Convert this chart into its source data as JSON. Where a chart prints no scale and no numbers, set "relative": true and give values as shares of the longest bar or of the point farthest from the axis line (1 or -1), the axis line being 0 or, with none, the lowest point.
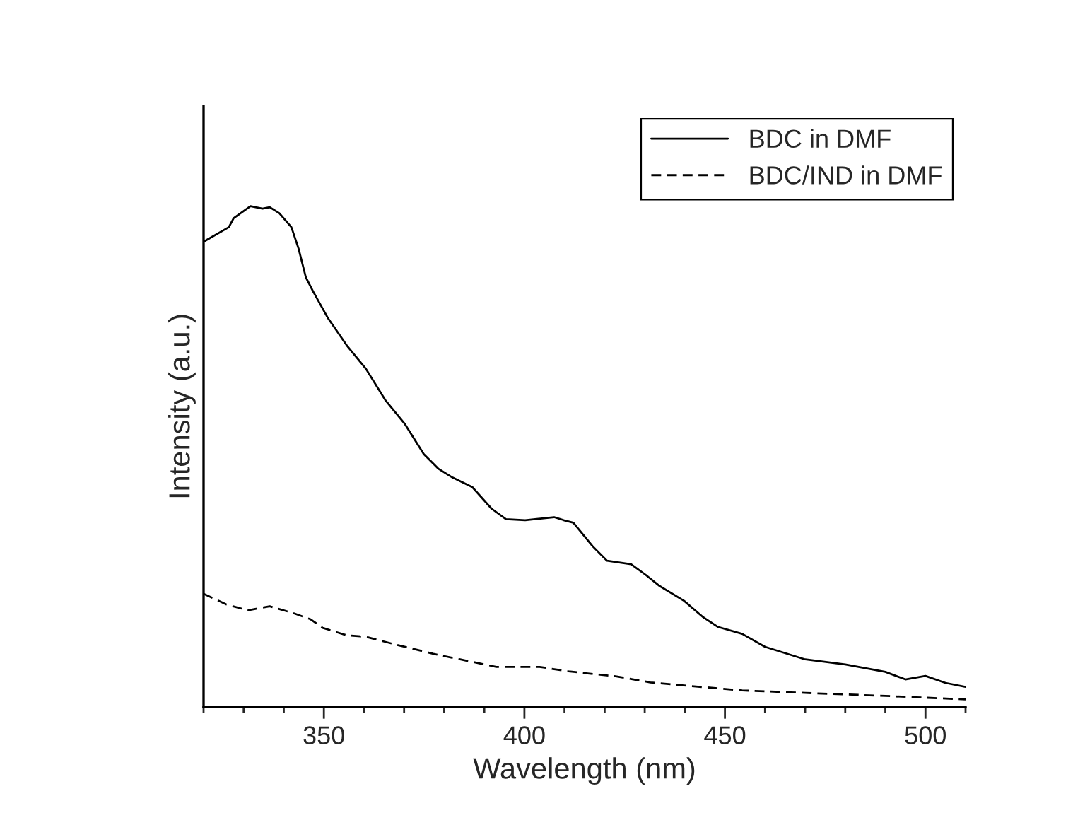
{
  "chart_data": {
    "type": "line",
    "relative": true,
    "xlabel": "Wavelength (nm)",
    "ylabel": "Intensity (a.u.)",
    "xlim": [
      320,
      510
    ],
    "xticks": [
      350,
      400,
      450,
      500
    ],
    "legend": "top right",
    "grid": false,
    "series": [
      {
        "name": "BDC in DMF",
        "color": "#000000",
        "line_style": "solid",
        "x": [
          320,
          326.3,
          327.5,
          331.7,
          334.7,
          336.5,
          338.9,
          341.9,
          343.7,
          345.5,
          347.3,
          350.9,
          355.7,
          360.5,
          365.3,
          370.1,
          374.9,
          378.5,
          382.1,
          387,
          391.8,
          395.4,
          400.2,
          407.4,
          409.8,
          412.2,
          417,
          420.6,
          426.6,
          430.2,
          433.8,
          439.8,
          444.6,
          448.2,
          454.3,
          460,
          470,
          480,
          490,
          495,
          500,
          505,
          510
        ],
        "values": [
          0.929,
          0.958,
          0.976,
          1.0,
          0.995,
          0.998,
          0.986,
          0.958,
          0.915,
          0.858,
          0.83,
          0.778,
          0.722,
          0.675,
          0.613,
          0.566,
          0.505,
          0.476,
          0.458,
          0.439,
          0.396,
          0.375,
          0.373,
          0.379,
          0.373,
          0.368,
          0.321,
          0.292,
          0.285,
          0.264,
          0.241,
          0.212,
          0.179,
          0.16,
          0.146,
          0.12,
          0.095,
          0.085,
          0.07,
          0.055,
          0.062,
          0.048,
          0.04
        ]
      },
      {
        "name": "BDC/IND in DMF",
        "color": "#000000",
        "line_style": "dashed",
        "x": [
          320,
          325.6,
          331,
          336.5,
          342.5,
          346.7,
          349.7,
          355.7,
          360.5,
          367.7,
          377.3,
          387,
          393,
          403.8,
          411,
          423,
          431.4,
          441,
          454.3,
          470,
          490,
          510
        ],
        "values": [
          0.226,
          0.205,
          0.193,
          0.201,
          0.187,
          0.175,
          0.158,
          0.143,
          0.14,
          0.125,
          0.106,
          0.09,
          0.08,
          0.08,
          0.071,
          0.061,
          0.049,
          0.042,
          0.033,
          0.028,
          0.022,
          0.015
        ]
      }
    ]
  }
}
